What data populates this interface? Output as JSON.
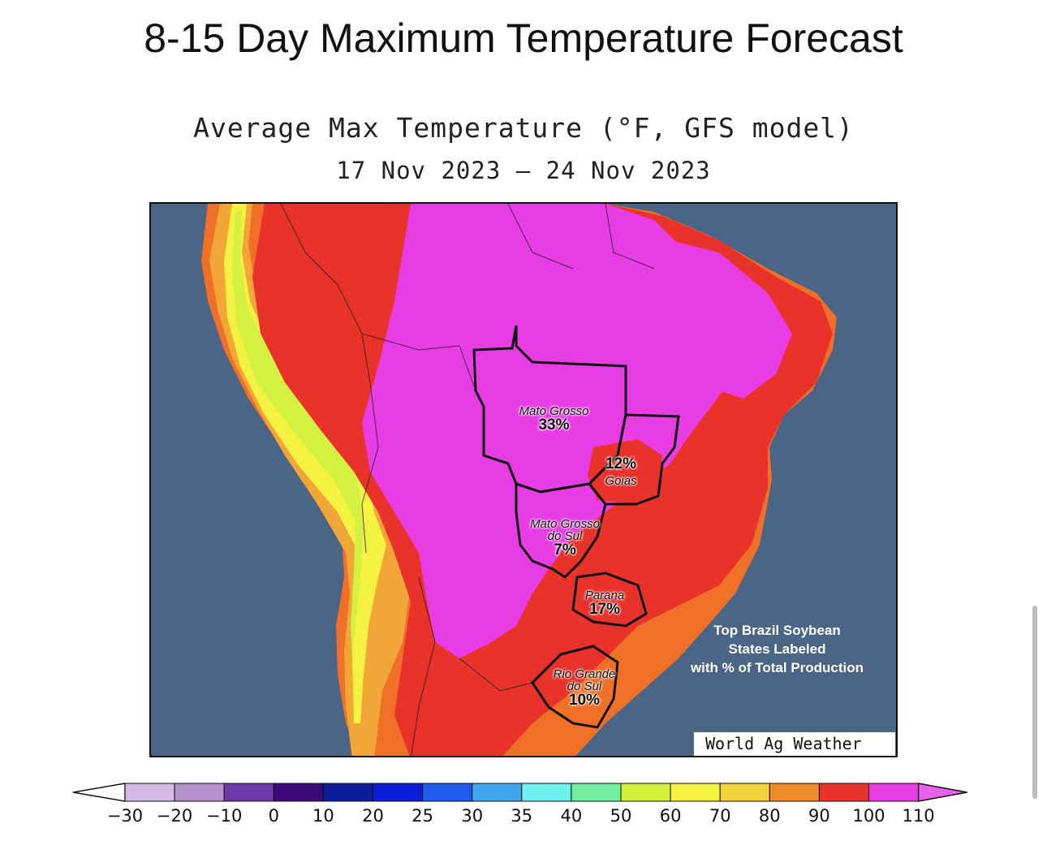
{
  "page": {
    "title": "8-15 Day Maximum Temperature Forecast"
  },
  "map": {
    "title": "Average Max Temperature (°F, GFS model)",
    "dates": "17 Nov 2023 – 24 Nov 2023",
    "note_lines": [
      "Top Brazil Soybean",
      "States Labeled",
      "with % of Total Production"
    ],
    "credit": "World Ag Weather",
    "states": [
      {
        "name": "Mato Grosso",
        "percent": "33%"
      },
      {
        "name": "Goias",
        "percent": "12%"
      },
      {
        "name": "Mato Grosso do Sul",
        "name_lines": [
          "Mato Grosso",
          "do Sul"
        ],
        "percent": "7%"
      },
      {
        "name": "Parana",
        "percent": "17%"
      },
      {
        "name": "Rio Grande do Sul",
        "name_lines": [
          "Rio Grande",
          "do Sul"
        ],
        "percent": "10%"
      }
    ],
    "colors": {
      "ocean": "#4a6585",
      "t110": "#e83ce4",
      "t100": "#e8322a",
      "t90": "#f07028",
      "t80": "#f3a638",
      "t70": "#f5d23c",
      "t60": "#f3f240",
      "t50": "#d4f040"
    }
  },
  "colorbar": {
    "labels": [
      "−30",
      "−20",
      "−10",
      "0",
      "10",
      "20",
      "25",
      "30",
      "35",
      "40",
      "50",
      "60",
      "70",
      "80",
      "90",
      "100",
      "110"
    ],
    "colors": [
      "#d6b8e6",
      "#b592cc",
      "#6e3aa8",
      "#3b0a78",
      "#0b1b9a",
      "#0a1ed8",
      "#1e5cf0",
      "#3fa6ee",
      "#6ff0f0",
      "#72eea0",
      "#d2f03a",
      "#f3f240",
      "#f5d23c",
      "#f08a28",
      "#e8322a",
      "#e83ce4"
    ],
    "low_end_color": "#ffffff",
    "high_end_color": "#e860ee"
  }
}
